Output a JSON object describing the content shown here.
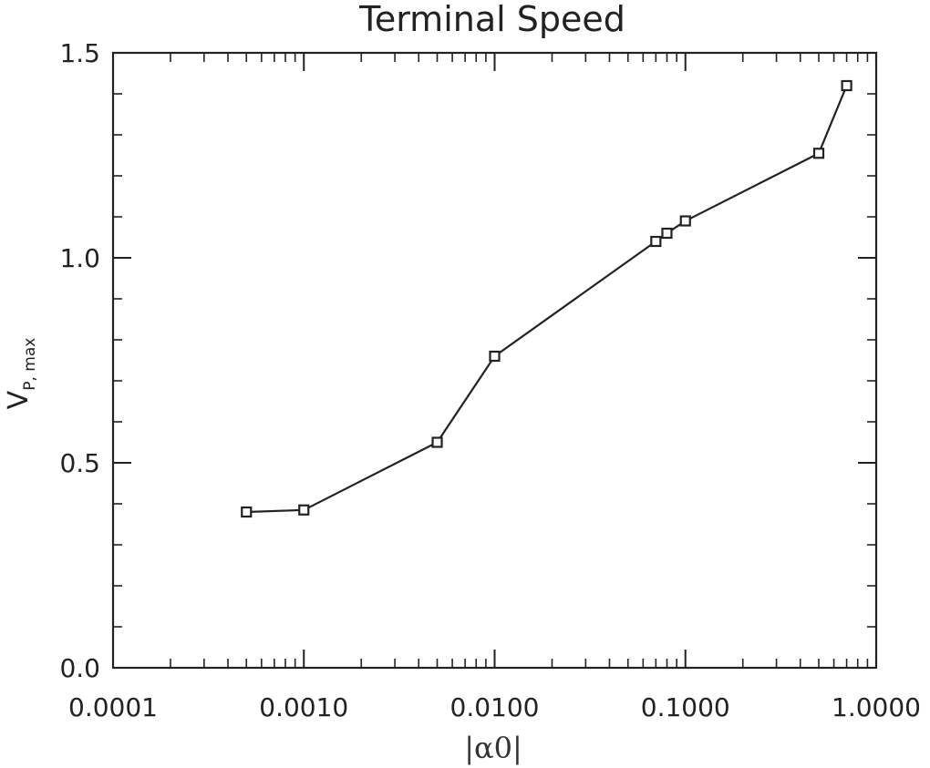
{
  "chart_data": {
    "type": "line",
    "title": "Terminal Speed",
    "xlabel": "|α0|",
    "ylabel": "V",
    "ylabel_subscript": "P, max",
    "x_scale": "log",
    "xlim": [
      0.0001,
      1.0
    ],
    "ylim": [
      0.0,
      1.5
    ],
    "x_ticks": [
      0.0001,
      0.001,
      0.01,
      0.1,
      1.0
    ],
    "x_tick_labels": [
      "0.0001",
      "0.0010",
      "0.0100",
      "0.1000",
      "1.0000"
    ],
    "y_ticks": [
      0.0,
      0.5,
      1.0,
      1.5
    ],
    "y_tick_labels": [
      "0.0",
      "0.5",
      "1.0",
      "1.5"
    ],
    "grid": false,
    "marker": "square",
    "colors": {
      "line": "#222222",
      "axes": "#222222"
    },
    "series": [
      {
        "x": [
          0.0005,
          0.001,
          0.005,
          0.01,
          0.07,
          0.08,
          0.1,
          0.5,
          0.7
        ],
        "y": [
          0.38,
          0.385,
          0.55,
          0.76,
          1.04,
          1.06,
          1.09,
          1.255,
          1.42
        ]
      }
    ]
  }
}
